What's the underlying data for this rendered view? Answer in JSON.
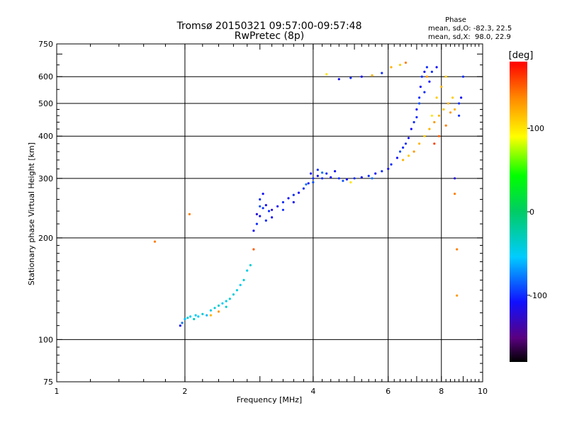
{
  "chart_data": {
    "type": "scatter",
    "title": "Tromsø 20150321 09:57:00-09:57:48",
    "subtitle": "RwPretec (8p)",
    "xlabel": "Frequency [MHz]",
    "ylabel": "Stationary phase Virtual Height [km]",
    "x_scale": "log",
    "y_scale": "log",
    "xlim": [
      1,
      10
    ],
    "ylim": [
      75,
      750
    ],
    "x_ticks": [
      1,
      2,
      4,
      6,
      8,
      10
    ],
    "y_ticks": [
      75,
      100,
      200,
      300,
      400,
      500,
      600,
      750
    ],
    "grid_x": [
      2,
      4,
      6,
      8
    ],
    "grid_y": [
      100,
      200,
      300,
      400,
      500,
      600
    ],
    "stats": {
      "title": "Phase",
      "o_line": "mean, sd,O: -82.3, 22.5",
      "x_line": "mean, sd,X:  98.0, 22.9"
    },
    "colorbar": {
      "label": "[deg]",
      "ticks": [
        100,
        0,
        -100
      ],
      "range": [
        -180,
        180
      ],
      "colormap": "rainbow"
    },
    "series": [
      {
        "points": [
          [
            1.95,
            110,
            -110
          ],
          [
            1.97,
            112,
            -80
          ],
          [
            2.0,
            115,
            -60
          ],
          [
            2.03,
            116,
            -40
          ],
          [
            2.06,
            117,
            -50
          ],
          [
            2.1,
            115,
            -30
          ],
          [
            2.15,
            117,
            -55
          ],
          [
            2.2,
            119,
            -40
          ],
          [
            2.25,
            118,
            -60
          ],
          [
            2.3,
            122,
            -45
          ],
          [
            2.35,
            124,
            -40
          ],
          [
            2.4,
            126,
            -35
          ],
          [
            2.45,
            128,
            -50
          ],
          [
            2.5,
            130,
            -45
          ],
          [
            2.55,
            132,
            -40
          ],
          [
            2.6,
            136,
            -40
          ],
          [
            2.65,
            140,
            -45
          ],
          [
            2.7,
            145,
            -50
          ],
          [
            2.75,
            150,
            -40
          ],
          [
            2.8,
            160,
            -45
          ],
          [
            2.85,
            166,
            -40
          ],
          [
            2.3,
            118,
            120
          ],
          [
            2.4,
            121,
            130
          ],
          [
            2.9,
            185,
            150
          ],
          [
            2.12,
            118,
            -50
          ],
          [
            2.5,
            125,
            -35
          ],
          [
            2.9,
            210,
            -110
          ],
          [
            2.95,
            220,
            -100
          ],
          [
            3.0,
            232,
            -110
          ],
          [
            3.05,
            245,
            -100
          ],
          [
            3.1,
            250,
            -110
          ],
          [
            3.15,
            240,
            -100
          ],
          [
            3.2,
            242,
            -120
          ],
          [
            3.3,
            248,
            -110
          ],
          [
            3.4,
            255,
            -100
          ],
          [
            3.5,
            262,
            -110
          ],
          [
            3.6,
            268,
            -100
          ],
          [
            3.7,
            272,
            -110
          ],
          [
            3.8,
            280,
            -100
          ],
          [
            3.9,
            290,
            -110
          ],
          [
            4.0,
            300,
            -100
          ],
          [
            4.1,
            305,
            -110
          ],
          [
            3.0,
            260,
            -100
          ],
          [
            3.05,
            270,
            -110
          ],
          [
            2.95,
            235,
            -120
          ],
          [
            3.1,
            225,
            -100
          ],
          [
            3.0,
            248,
            -90
          ],
          [
            3.2,
            230,
            -110
          ],
          [
            3.4,
            242,
            -100
          ],
          [
            3.6,
            255,
            -110
          ],
          [
            3.85,
            288,
            -80
          ],
          [
            4.0,
            292,
            -90
          ],
          [
            4.1,
            318,
            -100
          ],
          [
            3.95,
            310,
            -110
          ],
          [
            4.2,
            300,
            -100
          ],
          [
            4.4,
            302,
            -110
          ],
          [
            4.6,
            300,
            -100
          ],
          [
            4.8,
            298,
            -110
          ],
          [
            5.0,
            300,
            -100
          ],
          [
            5.2,
            302,
            -110
          ],
          [
            5.4,
            305,
            -100
          ],
          [
            5.6,
            310,
            -110
          ],
          [
            5.8,
            315,
            -100
          ],
          [
            6.0,
            320,
            -110
          ],
          [
            4.3,
            310,
            -100
          ],
          [
            4.5,
            315,
            -110
          ],
          [
            4.7,
            295,
            -90
          ],
          [
            4.2,
            312,
            -80
          ],
          [
            4.9,
            292,
            100
          ],
          [
            5.5,
            300,
            -80
          ],
          [
            6.1,
            330,
            -100
          ],
          [
            6.3,
            345,
            -110
          ],
          [
            6.5,
            370,
            -100
          ],
          [
            6.7,
            395,
            -110
          ],
          [
            6.9,
            440,
            -100
          ],
          [
            7.0,
            480,
            -110
          ],
          [
            7.1,
            520,
            -100
          ],
          [
            7.15,
            560,
            -110
          ],
          [
            7.2,
            600,
            -100
          ],
          [
            7.3,
            620,
            -110
          ],
          [
            7.4,
            640,
            -100
          ],
          [
            6.4,
            360,
            -90
          ],
          [
            6.6,
            380,
            -100
          ],
          [
            6.8,
            420,
            -110
          ],
          [
            7.0,
            455,
            -100
          ],
          [
            7.1,
            500,
            -90
          ],
          [
            7.3,
            540,
            -100
          ],
          [
            7.5,
            580,
            -110
          ],
          [
            7.6,
            620,
            -100
          ],
          [
            7.8,
            640,
            -110
          ],
          [
            6.5,
            340,
            120
          ],
          [
            6.7,
            350,
            110
          ],
          [
            6.9,
            360,
            130
          ],
          [
            7.1,
            380,
            120
          ],
          [
            7.3,
            400,
            110
          ],
          [
            7.5,
            420,
            120
          ],
          [
            7.7,
            440,
            130
          ],
          [
            7.9,
            460,
            120
          ],
          [
            8.1,
            480,
            110
          ],
          [
            8.3,
            500,
            120
          ],
          [
            8.5,
            520,
            110
          ],
          [
            7.6,
            460,
            100
          ],
          [
            7.8,
            520,
            110
          ],
          [
            8.0,
            560,
            120
          ],
          [
            8.2,
            600,
            110
          ],
          [
            7.4,
            600,
            130
          ],
          [
            7.7,
            380,
            160
          ],
          [
            7.9,
            400,
            150
          ],
          [
            8.2,
            430,
            140
          ],
          [
            8.4,
            470,
            130
          ],
          [
            8.6,
            480,
            120
          ],
          [
            8.8,
            500,
            -100
          ],
          [
            8.9,
            520,
            -110
          ],
          [
            8.8,
            460,
            -100
          ],
          [
            9.0,
            600,
            -100
          ],
          [
            4.3,
            610,
            100
          ],
          [
            4.6,
            590,
            -110
          ],
          [
            4.9,
            595,
            -100
          ],
          [
            5.2,
            600,
            -110
          ],
          [
            5.5,
            605,
            120
          ],
          [
            5.8,
            615,
            -100
          ],
          [
            6.1,
            640,
            120
          ],
          [
            6.4,
            650,
            110
          ],
          [
            6.6,
            660,
            140
          ],
          [
            8.6,
            300,
            -120
          ],
          [
            8.6,
            270,
            140
          ],
          [
            8.7,
            185,
            140
          ],
          [
            8.7,
            135,
            130
          ],
          [
            2.05,
            235,
            140
          ],
          [
            1.7,
            195,
            140
          ]
        ]
      }
    ]
  }
}
